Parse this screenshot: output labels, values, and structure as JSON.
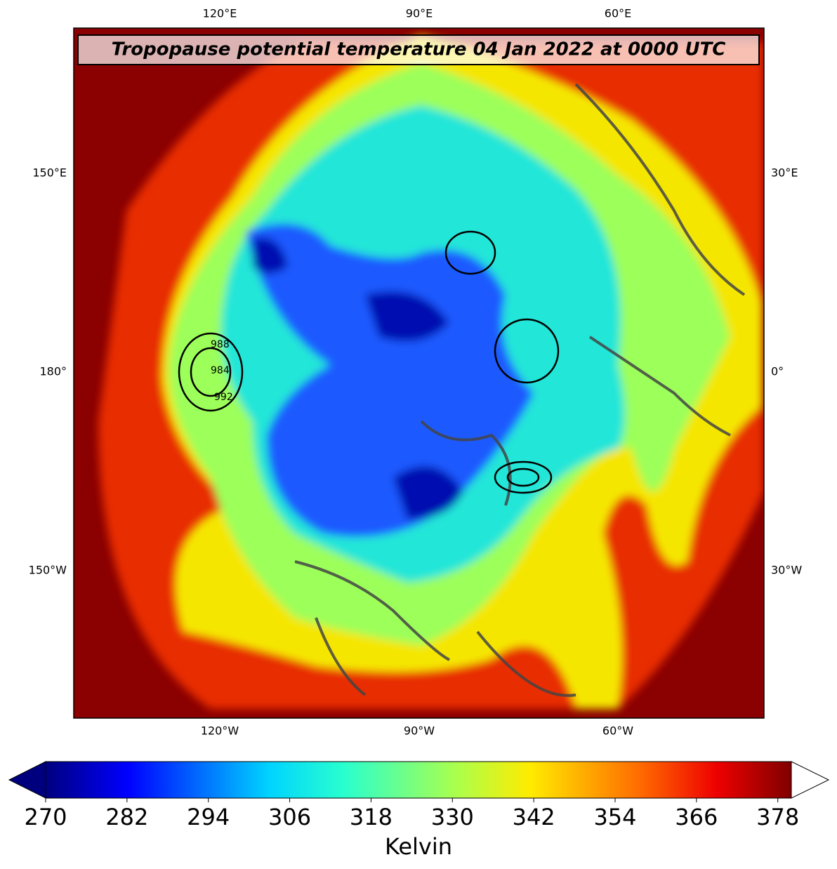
{
  "map": {
    "title": "Tropopause potential temperature 04 Jan 2022 at 0000 UTC",
    "lon_labels": {
      "top": [
        "120°E",
        "90°E",
        "60°E"
      ],
      "left": [
        "150°E",
        "180°",
        "150°W"
      ],
      "right": [
        "30°E",
        "0°",
        "30°W"
      ],
      "bottom": [
        "120°W",
        "90°W",
        "60°W"
      ]
    },
    "contour_labels": [
      "988",
      "984",
      "992"
    ]
  },
  "colorbar": {
    "label": "Kelvin",
    "range": [
      270,
      380
    ],
    "ticks": [
      270,
      282,
      294,
      306,
      318,
      330,
      342,
      354,
      366,
      378
    ]
  }
}
